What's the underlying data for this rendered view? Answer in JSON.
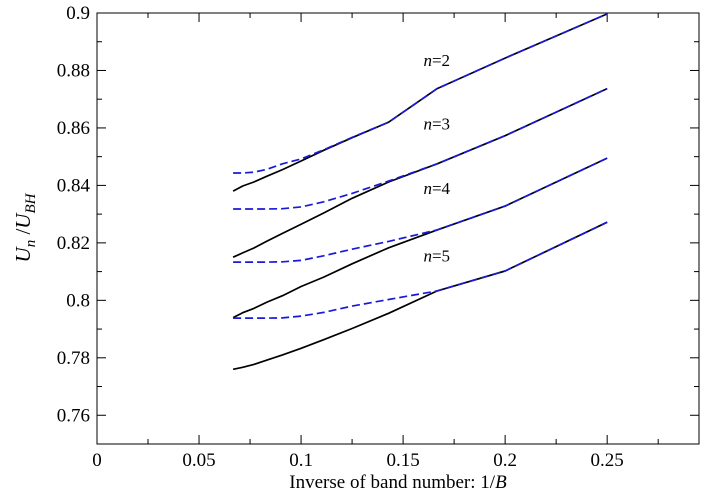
{
  "chart_data": {
    "type": "line",
    "title": "",
    "xlabel": {
      "prefix": "Inverse of band number:  1/",
      "var": "B"
    },
    "ylabel": {
      "main1": "U",
      "sub1": "n",
      "slash": " /",
      "main2": "U",
      "sub2": "BH"
    },
    "xlim": [
      0,
      0.295
    ],
    "ylim": [
      0.75,
      0.9
    ],
    "xticks": [
      0,
      0.05,
      0.1,
      0.15,
      0.2,
      0.25
    ],
    "xtick_labels": [
      "0",
      "0.05",
      "0.1",
      "0.15",
      "0.2",
      "0.25"
    ],
    "yticks": [
      0.76,
      0.78,
      0.8,
      0.82,
      0.84,
      0.86,
      0.88,
      0.9
    ],
    "ytick_labels": [
      "0.76",
      "0.78",
      "0.8",
      "0.82",
      "0.84",
      "0.86",
      "0.88",
      "0.9"
    ],
    "grid": false,
    "colors": {
      "solid": "#000000",
      "dashed": "#1a1ad6"
    },
    "series": [
      {
        "label": "n=2",
        "label_at": [
          0.1665,
          0.8815
        ],
        "style": "solid",
        "x": [
          0.0667,
          0.0714,
          0.0769,
          0.0833,
          0.0909,
          0.1,
          0.1111,
          0.125,
          0.1429,
          0.1667,
          0.2,
          0.25
        ],
        "y": [
          0.838,
          0.8398,
          0.8412,
          0.8432,
          0.8455,
          0.8485,
          0.8522,
          0.8566,
          0.862,
          0.8737,
          0.8843,
          0.8997
        ]
      },
      {
        "style": "dashed",
        "x": [
          0.0667,
          0.0714,
          0.0769,
          0.0833,
          0.0909,
          0.1,
          0.1111,
          0.125,
          0.1429,
          0.1667,
          0.2,
          0.25
        ],
        "y": [
          0.8443,
          0.8443,
          0.8446,
          0.8456,
          0.8475,
          0.8492,
          0.8524,
          0.8567,
          0.862,
          0.8737,
          0.8843,
          0.8997
        ]
      },
      {
        "label": "n=3",
        "label_at": [
          0.1665,
          0.8595
        ],
        "style": "solid",
        "x": [
          0.0667,
          0.0714,
          0.0769,
          0.0833,
          0.0909,
          0.1,
          0.1111,
          0.125,
          0.1429,
          0.1667,
          0.2,
          0.25
        ],
        "y": [
          0.815,
          0.8165,
          0.8182,
          0.8206,
          0.8233,
          0.8265,
          0.8304,
          0.8355,
          0.8412,
          0.8475,
          0.8573,
          0.8737
        ]
      },
      {
        "style": "dashed",
        "x": [
          0.0667,
          0.0714,
          0.0769,
          0.0833,
          0.0909,
          0.1,
          0.1111,
          0.125,
          0.1429,
          0.1667,
          0.2,
          0.25
        ],
        "y": [
          0.8318,
          0.8318,
          0.8318,
          0.8318,
          0.8319,
          0.8325,
          0.8343,
          0.8372,
          0.8415,
          0.8475,
          0.8573,
          0.8737
        ]
      },
      {
        "label": "n=4",
        "label_at": [
          0.1665,
          0.837
        ],
        "style": "solid",
        "x": [
          0.0667,
          0.0714,
          0.0769,
          0.0833,
          0.0909,
          0.1,
          0.1111,
          0.125,
          0.1429,
          0.1667,
          0.2,
          0.25
        ],
        "y": [
          0.794,
          0.7957,
          0.7972,
          0.7994,
          0.8016,
          0.8048,
          0.8081,
          0.8127,
          0.8183,
          0.8245,
          0.8328,
          0.8495
        ]
      },
      {
        "style": "dashed",
        "x": [
          0.0667,
          0.0714,
          0.0769,
          0.0833,
          0.0909,
          0.1,
          0.1111,
          0.125,
          0.1429,
          0.1667,
          0.2,
          0.25
        ],
        "y": [
          0.8133,
          0.8133,
          0.8133,
          0.8133,
          0.8134,
          0.8139,
          0.8155,
          0.8178,
          0.8205,
          0.8245,
          0.8328,
          0.8495
        ]
      },
      {
        "label": "n=5",
        "label_at": [
          0.1665,
          0.8135
        ],
        "style": "solid",
        "x": [
          0.0667,
          0.0714,
          0.0769,
          0.0833,
          0.0909,
          0.1,
          0.1111,
          0.125,
          0.1429,
          0.1667,
          0.2,
          0.25
        ],
        "y": [
          0.776,
          0.7767,
          0.7777,
          0.7792,
          0.781,
          0.7833,
          0.7863,
          0.7902,
          0.7955,
          0.8033,
          0.8102,
          0.8272
        ]
      },
      {
        "style": "dashed",
        "x": [
          0.0667,
          0.0714,
          0.0769,
          0.0833,
          0.0909,
          0.1,
          0.1111,
          0.125,
          0.1429,
          0.1667,
          0.2,
          0.25
        ],
        "y": [
          0.7938,
          0.7938,
          0.7938,
          0.7938,
          0.7939,
          0.7945,
          0.7958,
          0.798,
          0.8003,
          0.8033,
          0.8102,
          0.8272
        ]
      }
    ]
  }
}
